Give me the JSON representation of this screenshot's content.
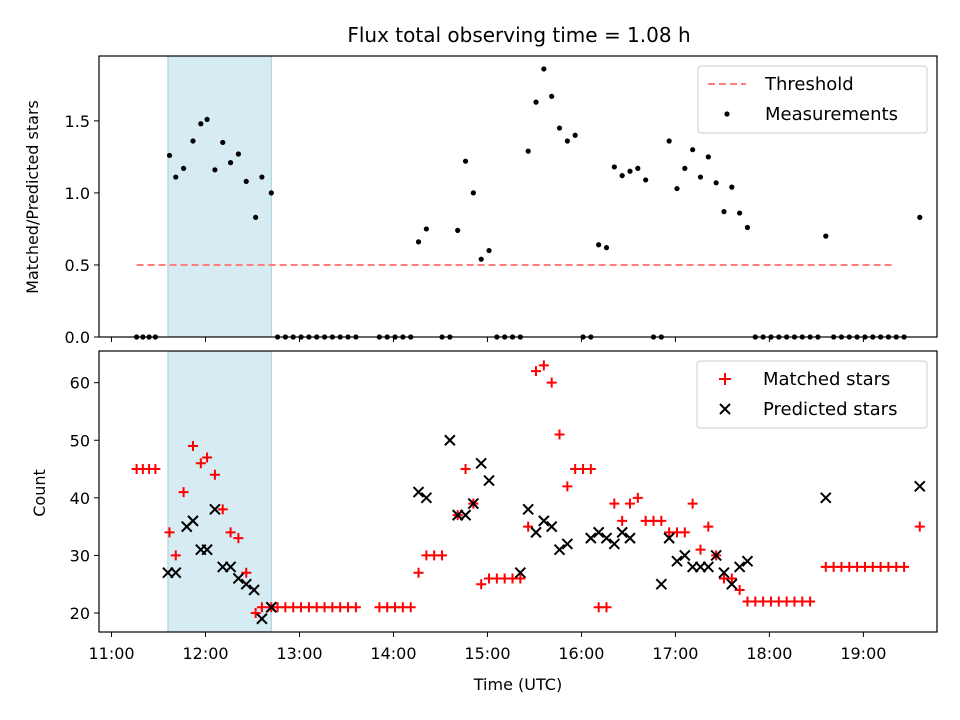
{
  "figure_title": "Flux total observing time = 1.08 h",
  "colors": {
    "threshold": "#ff7f7f",
    "measurement": "#000000",
    "matched": "#ff0000",
    "predicted": "#000000",
    "shade": "#add8e6"
  },
  "chart_data": [
    {
      "type": "scatter",
      "xlabel": "",
      "ylabel": "Matched/Predicted stars",
      "xlim": [
        "10:52",
        "19:47"
      ],
      "ylim": [
        0,
        1.95
      ],
      "yticks": [
        "0.0",
        "0.5",
        "1.0",
        "1.5"
      ],
      "shaded_interval": [
        "11:36",
        "12:42"
      ],
      "legend": {
        "placement": "top-right",
        "entries": [
          "Threshold",
          "Measurements"
        ]
      },
      "threshold": {
        "name": "Threshold",
        "value": 0.5,
        "x": [
          "11:16",
          "19:19"
        ]
      },
      "series": [
        {
          "name": "Measurements",
          "marker": "dot",
          "points": [
            [
              "11:16",
              0
            ],
            [
              "11:20",
              0
            ],
            [
              "11:24",
              0
            ],
            [
              "11:28",
              0
            ],
            [
              "11:37",
              1.26
            ],
            [
              "11:41",
              1.11
            ],
            [
              "11:46",
              1.17
            ],
            [
              "11:52",
              1.36
            ],
            [
              "11:57",
              1.48
            ],
            [
              "12:01",
              1.51
            ],
            [
              "12:06",
              1.16
            ],
            [
              "12:11",
              1.35
            ],
            [
              "12:16",
              1.21
            ],
            [
              "12:21",
              1.27
            ],
            [
              "12:26",
              1.08
            ],
            [
              "12:32",
              0.83
            ],
            [
              "12:36",
              1.11
            ],
            [
              "12:42",
              1.0
            ],
            [
              "12:46",
              0
            ],
            [
              "12:51",
              0
            ],
            [
              "12:56",
              0
            ],
            [
              "13:01",
              0
            ],
            [
              "13:06",
              0
            ],
            [
              "13:11",
              0
            ],
            [
              "13:16",
              0
            ],
            [
              "13:21",
              0
            ],
            [
              "13:26",
              0
            ],
            [
              "13:31",
              0
            ],
            [
              "13:36",
              0
            ],
            [
              "13:51",
              0
            ],
            [
              "13:56",
              0
            ],
            [
              "14:01",
              0
            ],
            [
              "14:06",
              0
            ],
            [
              "14:11",
              0
            ],
            [
              "14:16",
              0.66
            ],
            [
              "14:21",
              0.75
            ],
            [
              "14:31",
              0
            ],
            [
              "14:36",
              0
            ],
            [
              "14:41",
              0.74
            ],
            [
              "14:46",
              1.22
            ],
            [
              "14:51",
              1.0
            ],
            [
              "14:56",
              0.54
            ],
            [
              "15:01",
              0.6
            ],
            [
              "15:06",
              0
            ],
            [
              "15:11",
              0
            ],
            [
              "15:16",
              0
            ],
            [
              "15:21",
              0
            ],
            [
              "15:26",
              1.29
            ],
            [
              "15:31",
              1.63
            ],
            [
              "15:36",
              1.86
            ],
            [
              "15:41",
              1.67
            ],
            [
              "15:46",
              1.45
            ],
            [
              "15:51",
              1.36
            ],
            [
              "15:56",
              1.4
            ],
            [
              "16:01",
              0
            ],
            [
              "16:06",
              0
            ],
            [
              "16:11",
              0.64
            ],
            [
              "16:16",
              0.62
            ],
            [
              "16:21",
              1.18
            ],
            [
              "16:26",
              1.12
            ],
            [
              "16:31",
              1.15
            ],
            [
              "16:36",
              1.17
            ],
            [
              "16:41",
              1.09
            ],
            [
              "16:46",
              0
            ],
            [
              "16:51",
              0
            ],
            [
              "16:56",
              1.36
            ],
            [
              "17:01",
              1.03
            ],
            [
              "17:06",
              1.17
            ],
            [
              "17:11",
              1.3
            ],
            [
              "17:16",
              1.11
            ],
            [
              "17:21",
              1.25
            ],
            [
              "17:26",
              1.07
            ],
            [
              "17:31",
              0.87
            ],
            [
              "17:36",
              1.04
            ],
            [
              "17:41",
              0.86
            ],
            [
              "17:46",
              0.76
            ],
            [
              "17:51",
              0
            ],
            [
              "17:56",
              0
            ],
            [
              "18:01",
              0
            ],
            [
              "18:06",
              0
            ],
            [
              "18:11",
              0
            ],
            [
              "18:16",
              0
            ],
            [
              "18:21",
              0
            ],
            [
              "18:26",
              0
            ],
            [
              "18:31",
              0
            ],
            [
              "18:36",
              0.7
            ],
            [
              "18:41",
              0
            ],
            [
              "18:46",
              0
            ],
            [
              "18:51",
              0
            ],
            [
              "18:56",
              0
            ],
            [
              "19:01",
              0
            ],
            [
              "19:06",
              0
            ],
            [
              "19:11",
              0
            ],
            [
              "19:16",
              0
            ],
            [
              "19:21",
              0
            ],
            [
              "19:26",
              0
            ],
            [
              "19:36",
              0.83
            ]
          ]
        }
      ]
    },
    {
      "type": "scatter",
      "xlabel": "Time (UTC)",
      "ylabel": "Count",
      "xlim": [
        "10:52",
        "19:47"
      ],
      "ylim": [
        16.7,
        65.5
      ],
      "yticks": [
        "20",
        "30",
        "40",
        "50",
        "60"
      ],
      "xticks": [
        "11:00",
        "12:00",
        "13:00",
        "14:00",
        "15:00",
        "16:00",
        "17:00",
        "18:00",
        "19:00"
      ],
      "shaded_interval": [
        "11:36",
        "12:42"
      ],
      "legend": {
        "placement": "top-right",
        "entries": [
          "Matched stars",
          "Predicted stars"
        ]
      },
      "series": [
        {
          "name": "Matched stars",
          "marker": "plus",
          "points": [
            [
              "11:16",
              45
            ],
            [
              "11:20",
              45
            ],
            [
              "11:24",
              45
            ],
            [
              "11:28",
              45
            ],
            [
              "11:37",
              34
            ],
            [
              "11:41",
              30
            ],
            [
              "11:46",
              41
            ],
            [
              "11:52",
              49
            ],
            [
              "11:57",
              46
            ],
            [
              "12:01",
              47
            ],
            [
              "12:06",
              44
            ],
            [
              "12:11",
              38
            ],
            [
              "12:16",
              34
            ],
            [
              "12:21",
              33
            ],
            [
              "12:26",
              27
            ],
            [
              "12:32",
              20
            ],
            [
              "12:36",
              21
            ],
            [
              "12:42",
              21
            ],
            [
              "12:46",
              21
            ],
            [
              "12:51",
              21
            ],
            [
              "12:56",
              21
            ],
            [
              "13:01",
              21
            ],
            [
              "13:06",
              21
            ],
            [
              "13:11",
              21
            ],
            [
              "13:16",
              21
            ],
            [
              "13:21",
              21
            ],
            [
              "13:26",
              21
            ],
            [
              "13:31",
              21
            ],
            [
              "13:36",
              21
            ],
            [
              "13:51",
              21
            ],
            [
              "13:56",
              21
            ],
            [
              "14:01",
              21
            ],
            [
              "14:06",
              21
            ],
            [
              "14:11",
              21
            ],
            [
              "14:16",
              27
            ],
            [
              "14:21",
              30
            ],
            [
              "14:26",
              30
            ],
            [
              "14:31",
              30
            ],
            [
              "14:41",
              37
            ],
            [
              "14:46",
              45
            ],
            [
              "14:51",
              39
            ],
            [
              "14:56",
              25
            ],
            [
              "15:01",
              26
            ],
            [
              "15:06",
              26
            ],
            [
              "15:11",
              26
            ],
            [
              "15:16",
              26
            ],
            [
              "15:21",
              26
            ],
            [
              "15:26",
              35
            ],
            [
              "15:31",
              62
            ],
            [
              "15:36",
              63
            ],
            [
              "15:41",
              60
            ],
            [
              "15:46",
              51
            ],
            [
              "15:51",
              42
            ],
            [
              "15:56",
              45
            ],
            [
              "16:01",
              45
            ],
            [
              "16:06",
              45
            ],
            [
              "16:11",
              21
            ],
            [
              "16:16",
              21
            ],
            [
              "16:21",
              39
            ],
            [
              "16:26",
              36
            ],
            [
              "16:31",
              39
            ],
            [
              "16:36",
              40
            ],
            [
              "16:41",
              36
            ],
            [
              "16:46",
              36
            ],
            [
              "16:51",
              36
            ],
            [
              "16:56",
              34
            ],
            [
              "17:01",
              34
            ],
            [
              "17:06",
              34
            ],
            [
              "17:11",
              39
            ],
            [
              "17:16",
              31
            ],
            [
              "17:21",
              35
            ],
            [
              "17:26",
              30
            ],
            [
              "17:31",
              26
            ],
            [
              "17:36",
              26
            ],
            [
              "17:41",
              24
            ],
            [
              "17:46",
              22
            ],
            [
              "17:51",
              22
            ],
            [
              "17:56",
              22
            ],
            [
              "18:01",
              22
            ],
            [
              "18:06",
              22
            ],
            [
              "18:11",
              22
            ],
            [
              "18:16",
              22
            ],
            [
              "18:21",
              22
            ],
            [
              "18:26",
              22
            ],
            [
              "18:36",
              28
            ],
            [
              "18:41",
              28
            ],
            [
              "18:46",
              28
            ],
            [
              "18:51",
              28
            ],
            [
              "18:56",
              28
            ],
            [
              "19:01",
              28
            ],
            [
              "19:06",
              28
            ],
            [
              "19:11",
              28
            ],
            [
              "19:16",
              28
            ],
            [
              "19:21",
              28
            ],
            [
              "19:26",
              28
            ],
            [
              "19:36",
              35
            ]
          ]
        },
        {
          "name": "Predicted stars",
          "marker": "x",
          "points": [
            [
              "11:36",
              27
            ],
            [
              "11:41",
              27
            ],
            [
              "11:48",
              35
            ],
            [
              "11:52",
              36
            ],
            [
              "11:57",
              31
            ],
            [
              "12:01",
              31
            ],
            [
              "12:06",
              38
            ],
            [
              "12:11",
              28
            ],
            [
              "12:16",
              28
            ],
            [
              "12:21",
              26
            ],
            [
              "12:26",
              25
            ],
            [
              "12:31",
              24
            ],
            [
              "12:36",
              19
            ],
            [
              "12:42",
              21
            ],
            [
              "14:16",
              41
            ],
            [
              "14:21",
              40
            ],
            [
              "14:36",
              50
            ],
            [
              "14:41",
              37
            ],
            [
              "14:46",
              37
            ],
            [
              "14:51",
              39
            ],
            [
              "14:56",
              46
            ],
            [
              "15:01",
              43
            ],
            [
              "15:21",
              27
            ],
            [
              "15:26",
              38
            ],
            [
              "15:31",
              34
            ],
            [
              "15:36",
              36
            ],
            [
              "15:41",
              35
            ],
            [
              "15:46",
              31
            ],
            [
              "15:51",
              32
            ],
            [
              "16:06",
              33
            ],
            [
              "16:11",
              34
            ],
            [
              "16:16",
              33
            ],
            [
              "16:21",
              32
            ],
            [
              "16:26",
              34
            ],
            [
              "16:31",
              33
            ],
            [
              "16:51",
              25
            ],
            [
              "16:56",
              33
            ],
            [
              "17:01",
              29
            ],
            [
              "17:06",
              30
            ],
            [
              "17:11",
              28
            ],
            [
              "17:16",
              28
            ],
            [
              "17:21",
              28
            ],
            [
              "17:26",
              30
            ],
            [
              "17:31",
              27
            ],
            [
              "17:36",
              25
            ],
            [
              "17:41",
              28
            ],
            [
              "17:46",
              29
            ],
            [
              "18:36",
              40
            ],
            [
              "19:36",
              42
            ]
          ]
        }
      ]
    }
  ]
}
